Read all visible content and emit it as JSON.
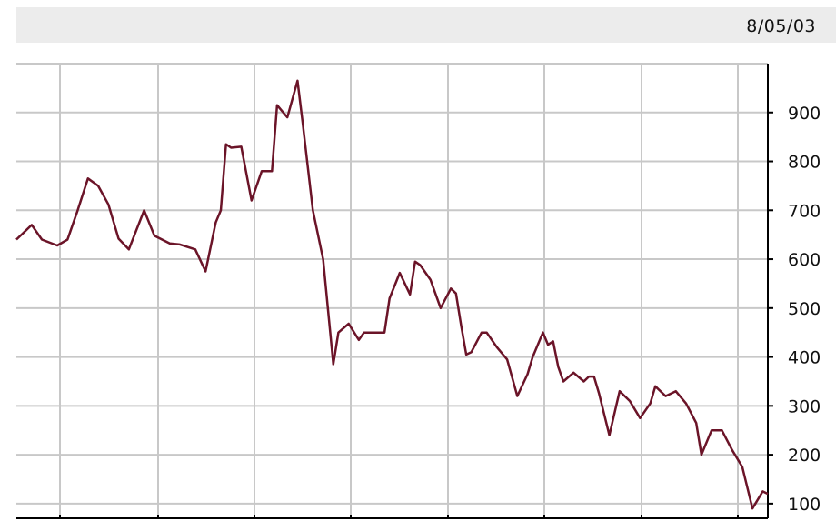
{
  "header": {
    "date": "8/05/03"
  },
  "colors": {
    "line": "#6b1428",
    "grid": "#c8c8c8",
    "axis": "#000000",
    "header_bg": "#ececec"
  },
  "chart_data": {
    "type": "line",
    "title": "",
    "xlabel": "",
    "ylabel": "",
    "ylim": [
      70,
      1000
    ],
    "yticks": [
      100,
      200,
      300,
      400,
      500,
      600,
      700,
      800,
      900
    ],
    "grid": true,
    "axis_side": "right",
    "series": [
      {
        "points": [
          [
            0,
            640
          ],
          [
            3,
            670
          ],
          [
            5,
            640
          ],
          [
            8,
            628
          ],
          [
            10,
            640
          ],
          [
            12,
            700
          ],
          [
            14,
            765
          ],
          [
            16,
            750
          ],
          [
            18,
            712
          ],
          [
            20,
            642
          ],
          [
            22,
            620
          ],
          [
            25,
            700
          ],
          [
            27,
            648
          ],
          [
            30,
            632
          ],
          [
            32,
            630
          ],
          [
            35,
            620
          ],
          [
            37,
            575
          ],
          [
            39,
            675
          ],
          [
            40,
            700
          ],
          [
            41,
            835
          ],
          [
            42,
            828
          ],
          [
            44,
            830
          ],
          [
            46,
            720
          ],
          [
            48,
            780
          ],
          [
            50,
            780
          ],
          [
            51,
            915
          ],
          [
            53,
            890
          ],
          [
            55,
            965
          ],
          [
            56,
            880
          ],
          [
            58,
            700
          ],
          [
            60,
            600
          ],
          [
            62,
            385
          ],
          [
            63,
            450
          ],
          [
            65,
            468
          ],
          [
            67,
            435
          ],
          [
            68,
            450
          ],
          [
            70,
            450
          ],
          [
            72,
            450
          ],
          [
            73,
            520
          ],
          [
            75,
            572
          ],
          [
            77,
            528
          ],
          [
            78,
            595
          ],
          [
            79,
            588
          ],
          [
            81,
            558
          ],
          [
            83,
            500
          ],
          [
            85,
            540
          ],
          [
            86,
            530
          ],
          [
            87,
            465
          ],
          [
            88,
            405
          ],
          [
            89,
            410
          ],
          [
            91,
            450
          ],
          [
            92,
            450
          ],
          [
            94,
            420
          ],
          [
            96,
            395
          ],
          [
            98,
            320
          ],
          [
            100,
            365
          ],
          [
            101,
            400
          ],
          [
            103,
            450
          ],
          [
            104,
            425
          ],
          [
            105,
            432
          ],
          [
            106,
            380
          ],
          [
            107,
            350
          ],
          [
            109,
            368
          ],
          [
            111,
            350
          ],
          [
            112,
            360
          ],
          [
            113,
            360
          ],
          [
            114,
            325
          ],
          [
            116,
            240
          ],
          [
            118,
            330
          ],
          [
            120,
            310
          ],
          [
            122,
            275
          ],
          [
            124,
            305
          ],
          [
            125,
            340
          ],
          [
            127,
            320
          ],
          [
            129,
            330
          ],
          [
            131,
            305
          ],
          [
            133,
            265
          ],
          [
            134,
            200
          ],
          [
            136,
            250
          ],
          [
            138,
            250
          ],
          [
            140,
            210
          ],
          [
            142,
            175
          ],
          [
            144,
            90
          ],
          [
            146,
            125
          ],
          [
            147,
            120
          ]
        ]
      }
    ]
  }
}
